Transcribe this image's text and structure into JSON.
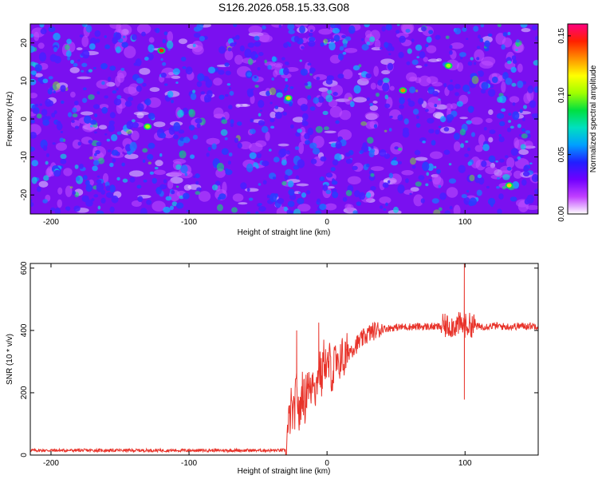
{
  "title": "S126.2026.058.15.33.G08",
  "chart_data": [
    {
      "type": "heatmap",
      "xlabel": "Height of straight line (km)",
      "ylabel": "Frequency (Hz)",
      "xlim": [
        -215,
        153
      ],
      "ylim": [
        -25,
        25
      ],
      "xticks": [
        -200,
        -100,
        0,
        100
      ],
      "yticks": [
        -20,
        -10,
        0,
        10,
        20
      ],
      "colorbar": {
        "label": "Normalized spectral amplitude",
        "range": [
          0.0,
          0.16
        ],
        "ticks": [
          "0.00",
          "0.05",
          "0.10",
          "0.15"
        ],
        "colors": [
          "#ffffff",
          "#c040ff",
          "#7000ff",
          "#2020ff",
          "#00a0ff",
          "#00e0c0",
          "#00e040",
          "#a0ff00",
          "#ffff00",
          "#ff9000",
          "#ff2000",
          "#ff0080"
        ]
      },
      "hotspots": [
        {
          "x": -120,
          "y": 18,
          "value": 0.16
        },
        {
          "x": 55,
          "y": 7.5,
          "value": 0.13
        },
        {
          "x": 132,
          "y": -17.5,
          "value": 0.12
        },
        {
          "x": -28,
          "y": 5.5,
          "value": 0.11
        },
        {
          "x": -130,
          "y": -2,
          "value": 0.1
        },
        {
          "x": 88,
          "y": 14,
          "value": 0.1
        }
      ]
    },
    {
      "type": "line",
      "xlabel": "Height of straight line (km)",
      "ylabel": "SNR (10 * v/v)",
      "xlim": [
        -215,
        153
      ],
      "ylim": [
        0,
        615
      ],
      "xticks": [
        -200,
        -100,
        0,
        100
      ],
      "yticks": [
        0,
        200,
        400,
        600
      ],
      "color": "#e8332a",
      "series": [
        {
          "name": "SNR",
          "x": [
            -215,
            -160,
            -100,
            -60,
            -30,
            -28,
            -26,
            -24,
            -22,
            -20,
            -18,
            -16,
            -14,
            -12,
            -10,
            -8,
            -6,
            -4,
            -2,
            0,
            2,
            4,
            6,
            8,
            10,
            12,
            15,
            20,
            25,
            30,
            35,
            40,
            50,
            60,
            70,
            80,
            90,
            96,
            100,
            104,
            110,
            120,
            130,
            140,
            153
          ],
          "y": [
            15,
            15,
            15,
            15,
            15,
            90,
            150,
            120,
            220,
            110,
            220,
            160,
            250,
            190,
            270,
            200,
            300,
            240,
            320,
            270,
            300,
            250,
            310,
            260,
            330,
            300,
            330,
            350,
            370,
            390,
            400,
            405,
            410,
            412,
            412,
            412,
            415,
            420,
            415,
            418,
            412,
            415,
            412,
            414,
            415
          ]
        }
      ],
      "spikes": [
        {
          "x": -22,
          "y": 400
        },
        {
          "x": -6,
          "y": 425
        },
        {
          "x": 99.5,
          "y": 615
        },
        {
          "x": 99.5,
          "y": 178
        }
      ]
    }
  ]
}
